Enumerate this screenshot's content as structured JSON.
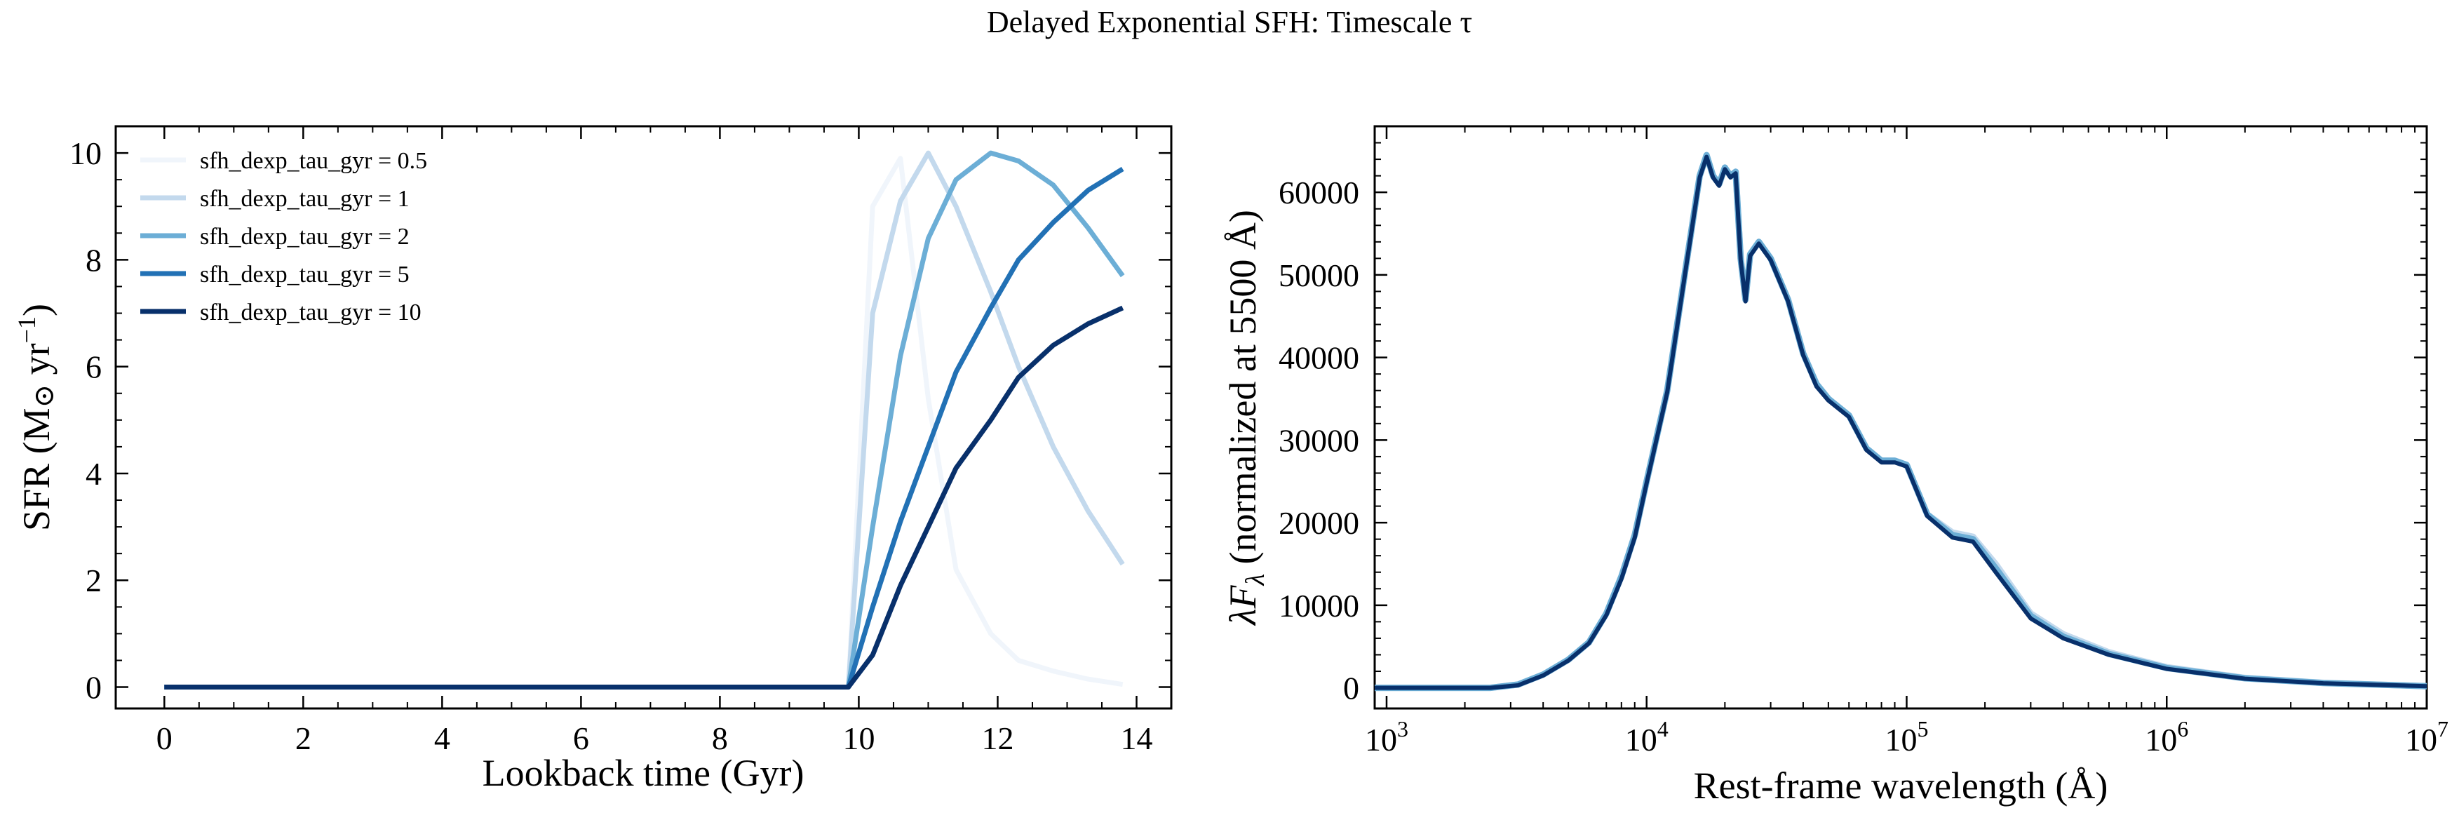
{
  "figure": {
    "title": "Delayed Exponential SFH: Timescale τ"
  },
  "chart_data": [
    {
      "type": "line",
      "title": "",
      "xlabel": "Lookback time (Gyr)",
      "ylabel": "SFR (M",
      "ylabel_suffix": " yr",
      "ylabel_sup": "−1",
      "xlim": [
        -0.7,
        14.5
      ],
      "ylim": [
        -0.4,
        10.5
      ],
      "xticks": [
        0,
        2,
        4,
        6,
        8,
        10,
        12,
        14
      ],
      "yticks": [
        0,
        2,
        4,
        6,
        8,
        10
      ],
      "grid": false,
      "legend_position": "upper-left",
      "x": [
        0,
        9.8,
        9.85,
        10.2,
        10.6,
        11.0,
        11.4,
        11.9,
        12.3,
        12.8,
        13.3,
        13.8
      ],
      "series": [
        {
          "name": "sfh_dexp_tau_gyr = 0.5",
          "color": "#f0f5fb",
          "values": [
            0,
            0,
            0,
            9.0,
            9.9,
            5.4,
            2.2,
            1.0,
            0.5,
            0.3,
            0.15,
            0.05
          ]
        },
        {
          "name": "sfh_dexp_tau_gyr = 1",
          "color": "#c3d9ed",
          "values": [
            0,
            0,
            0,
            7.0,
            9.1,
            10.0,
            9.0,
            7.4,
            6.0,
            4.5,
            3.3,
            2.3
          ]
        },
        {
          "name": "sfh_dexp_tau_gyr = 2",
          "color": "#6caed6",
          "values": [
            0,
            0,
            0,
            3.0,
            6.2,
            8.4,
            9.5,
            10.0,
            9.85,
            9.4,
            8.6,
            7.7
          ]
        },
        {
          "name": "sfh_dexp_tau_gyr = 5",
          "color": "#2271b5",
          "values": [
            0,
            0,
            0,
            1.5,
            3.1,
            4.5,
            5.9,
            7.1,
            8.0,
            8.7,
            9.3,
            9.7
          ]
        },
        {
          "name": "sfh_dexp_tau_gyr = 10",
          "color": "#08306b",
          "values": [
            0,
            0,
            0,
            0.6,
            1.9,
            3.0,
            4.1,
            5.0,
            5.8,
            6.4,
            6.8,
            7.1
          ]
        }
      ]
    },
    {
      "type": "line",
      "title": "",
      "xlabel": "Rest-frame wavelength (Å)",
      "ylabel": "λF",
      "ylabel_sub": "λ",
      "ylabel_suffix": " (normalized at 5500 Å)",
      "x_scale": "log",
      "xlim": [
        900,
        10000000
      ],
      "ylim": [
        -2500,
        68000
      ],
      "xticks": [
        1000,
        10000,
        100000,
        1000000,
        10000000
      ],
      "xtick_base": "10",
      "xtick_exponents": [
        "3",
        "4",
        "5",
        "6",
        "7"
      ],
      "yticks": [
        0,
        10000,
        20000,
        30000,
        40000,
        50000,
        60000
      ],
      "grid": false,
      "x": [
        900,
        2500,
        3200,
        4000,
        5000,
        6000,
        7000,
        8000,
        9000,
        10000,
        12000,
        14000,
        16000,
        17000,
        18000,
        19000,
        20000,
        21000,
        22000,
        23000,
        24000,
        25000,
        27000,
        30000,
        35000,
        40000,
        45000,
        50000,
        60000,
        70000,
        80000,
        90000,
        100000,
        120000,
        150000,
        180000,
        220000,
        300000,
        400000,
        600000,
        1000000,
        2000000,
        4000000,
        10000000
      ],
      "series": [
        {
          "name": "",
          "color": "#c3d9ed",
          "values": [
            0,
            0,
            400,
            1600,
            3400,
            5500,
            9000,
            13500,
            18500,
            25000,
            36000,
            50000,
            62000,
            64500,
            62000,
            61000,
            63000,
            62000,
            62500,
            52000,
            47000,
            52500,
            54000,
            52000,
            47000,
            40500,
            36800,
            35000,
            33000,
            29000,
            27500,
            27500,
            27000,
            21000,
            18800,
            18300,
            15000,
            9000,
            6500,
            4300,
            2500,
            1200,
            600,
            200
          ]
        },
        {
          "name": "",
          "color": "#6caed6",
          "values": [
            0,
            0,
            400,
            1600,
            3400,
            5500,
            9000,
            13500,
            18500,
            25000,
            36000,
            50000,
            62000,
            64500,
            62000,
            61000,
            63000,
            62000,
            62500,
            52000,
            47000,
            52500,
            54000,
            52000,
            47000,
            40500,
            36800,
            35000,
            33000,
            29000,
            27500,
            27500,
            27000,
            21000,
            18500,
            18000,
            14500,
            8700,
            6200,
            4100,
            2400,
            1150,
            580,
            200
          ]
        },
        {
          "name": "",
          "color": "#08306b",
          "values": [
            0,
            0,
            300,
            1500,
            3300,
            5400,
            8800,
            13200,
            18200,
            24800,
            35800,
            49800,
            61800,
            64300,
            61800,
            60800,
            62800,
            61800,
            62300,
            51800,
            46800,
            52300,
            53800,
            51800,
            46800,
            40300,
            36500,
            34800,
            32800,
            28800,
            27300,
            27300,
            26800,
            20800,
            18200,
            17700,
            14000,
            8400,
            6000,
            4000,
            2300,
            1100,
            550,
            200
          ]
        }
      ]
    }
  ]
}
